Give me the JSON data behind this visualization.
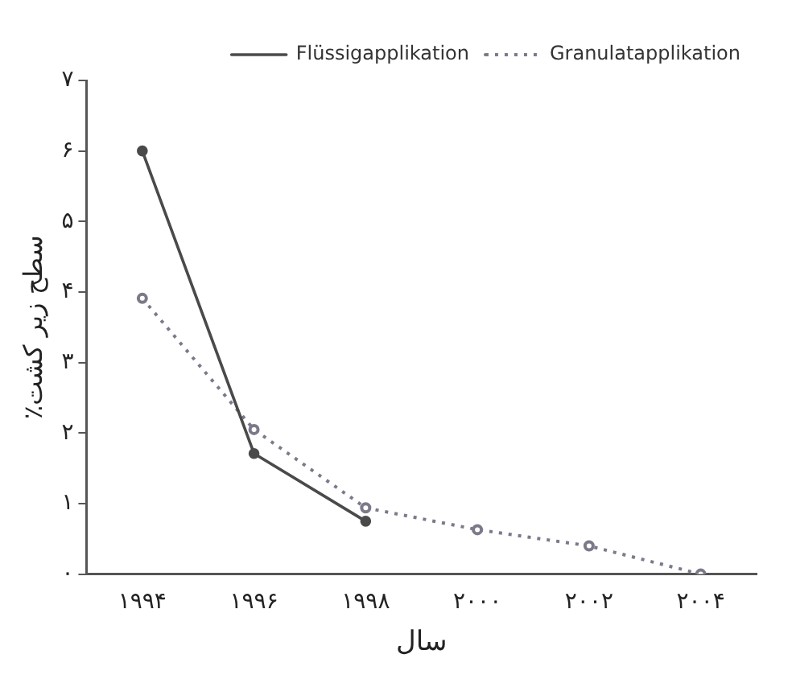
{
  "chart_data": {
    "type": "line",
    "xlabel": "سال",
    "ylabel": "٪سطح زیر کشت",
    "categories": [
      "۱۹۹۴",
      "۱۹۹۶",
      "۱۹۹۸",
      "۲۰۰۰",
      "۲۰۰۲",
      "۲۰۰۴"
    ],
    "series": [
      {
        "name": "Flüssigapplikation",
        "color": "#4a4a4a",
        "line_style": "solid",
        "values": [
          6.0,
          1.71,
          0.75,
          null,
          null,
          null
        ]
      },
      {
        "name": "Granulatapplikation",
        "color": "#7a7a8a",
        "line_style": "dotted",
        "values": [
          3.91,
          2.05,
          0.94,
          0.63,
          0.4,
          0
        ]
      }
    ],
    "ylim": [
      0,
      7
    ],
    "yticks": [
      {
        "value": 0,
        "label": "۰"
      },
      {
        "value": 1,
        "label": "۱"
      },
      {
        "value": 2,
        "label": "۲"
      },
      {
        "value": 3,
        "label": "۳"
      },
      {
        "value": 4,
        "label": "۴"
      },
      {
        "value": 5,
        "label": "۵"
      },
      {
        "value": 6,
        "label": "۶"
      },
      {
        "value": 7,
        "label": "۷"
      }
    ],
    "grid": false,
    "legend": "top right",
    "marker": "circle"
  }
}
